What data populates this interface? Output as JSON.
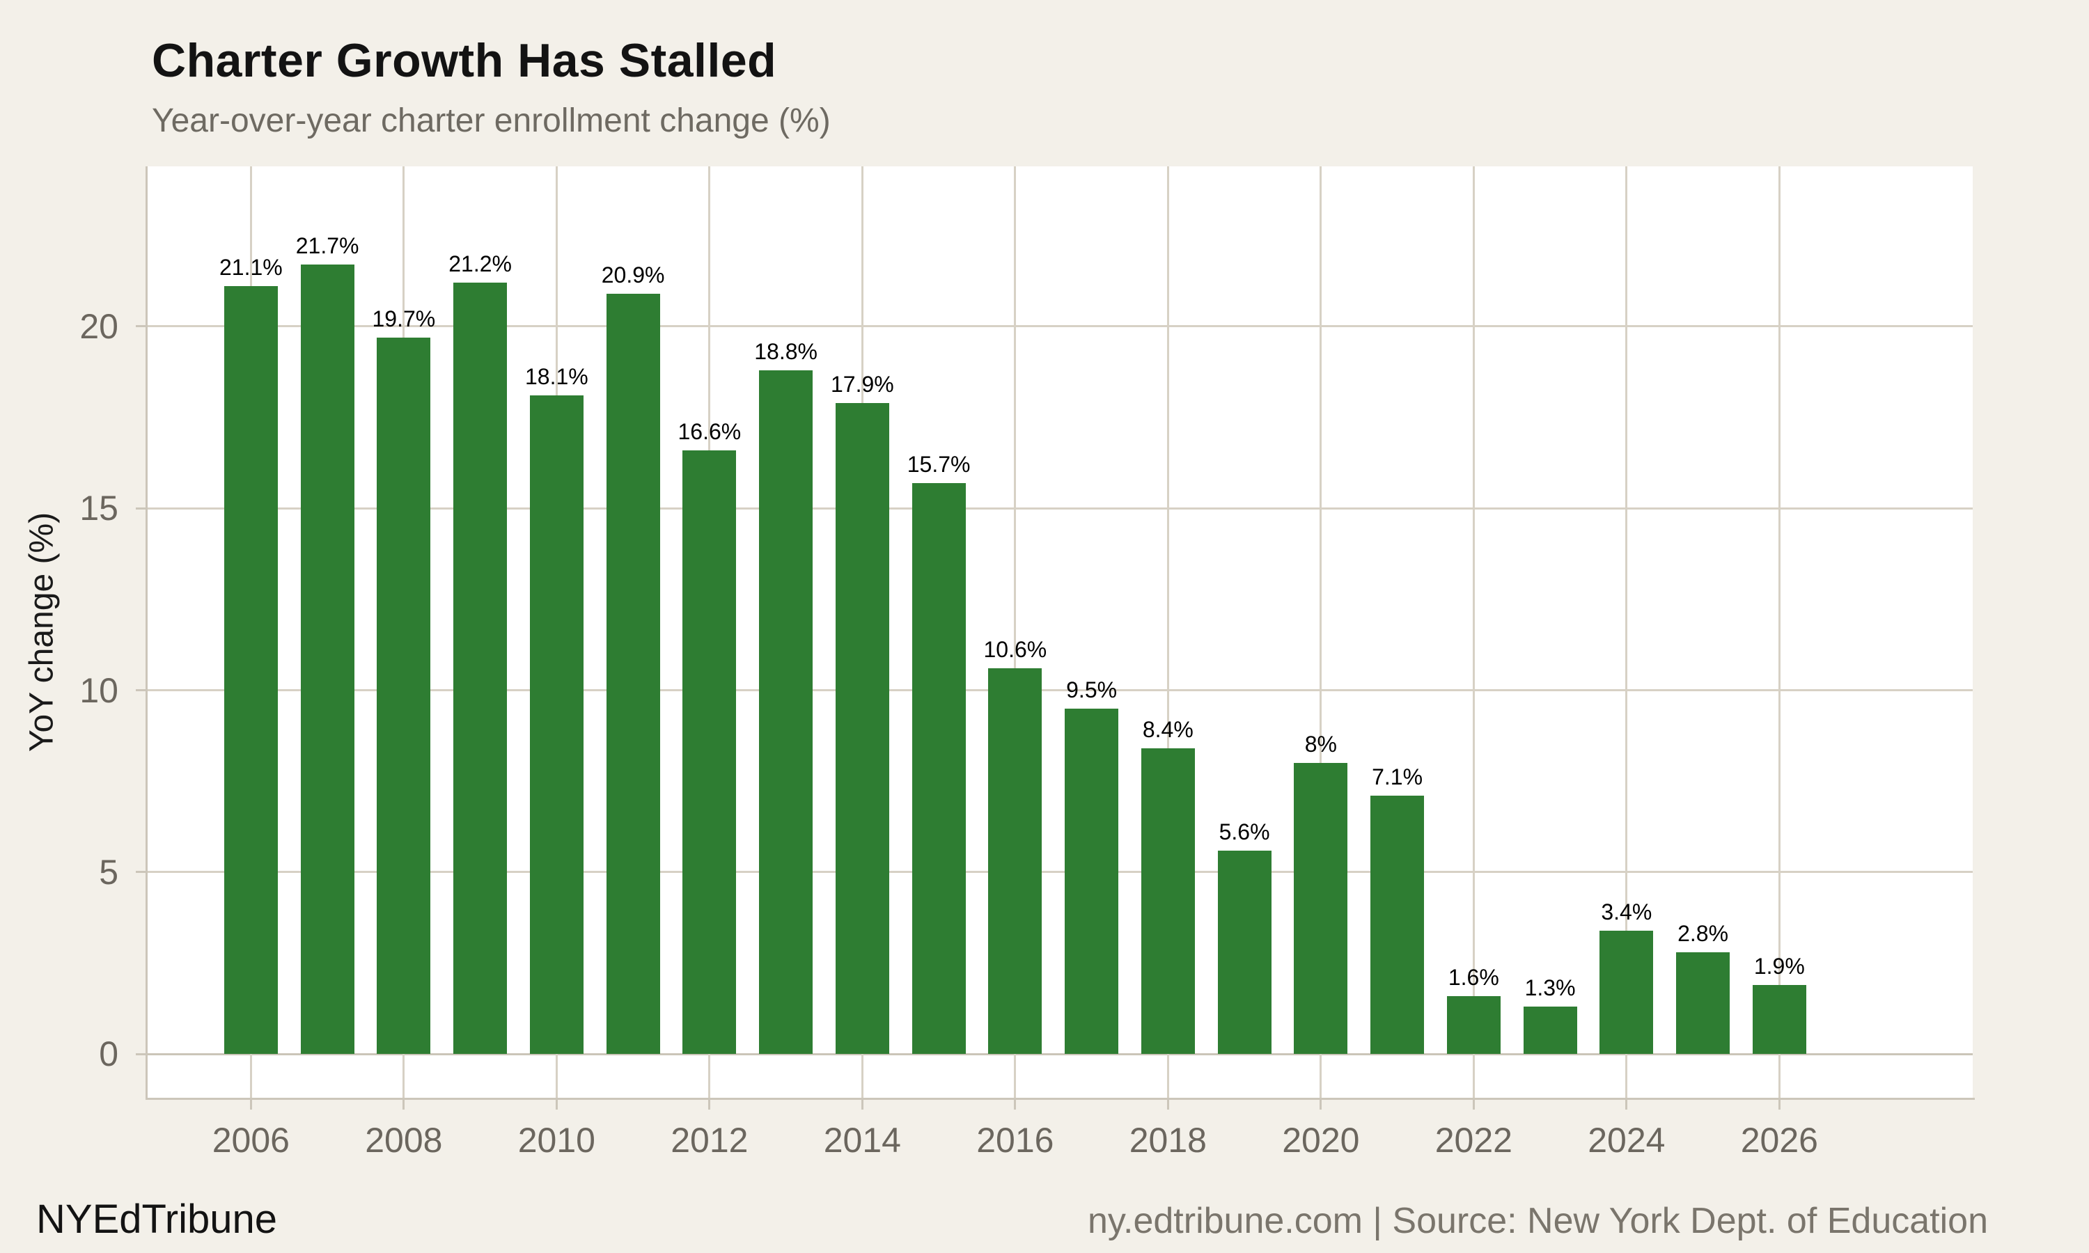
{
  "header": {
    "title": "Charter Growth Has Stalled",
    "subtitle": "Year-over-year charter enrollment change (%)"
  },
  "footer": {
    "brand": "NYEdTribune",
    "source": "ny.edtribune.com | Source: New York Dept. of Education"
  },
  "colors": {
    "page_background": "#f3f0e9",
    "plot_background": "#ffffff",
    "bar": "#2e7d32",
    "gridline": "#d7d1c5",
    "axis_line": "#ccc6ba",
    "tick_label": "#6b665e",
    "title": "#131313",
    "subtitle": "#6e6a62",
    "value_label": "#000000",
    "source_text": "#7a756c"
  },
  "chart_data": {
    "type": "bar",
    "title": "Charter Growth Has Stalled",
    "subtitle": "Year-over-year charter enrollment change (%)",
    "xlabel": "",
    "ylabel": "YoY change (%)",
    "x": [
      2006,
      2007,
      2008,
      2009,
      2010,
      2011,
      2012,
      2013,
      2014,
      2015,
      2016,
      2017,
      2018,
      2019,
      2020,
      2021,
      2022,
      2023,
      2024,
      2025,
      2026
    ],
    "values": [
      21.1,
      21.7,
      19.7,
      21.2,
      18.1,
      20.9,
      16.6,
      18.8,
      17.9,
      15.7,
      10.6,
      9.5,
      8.4,
      5.6,
      8,
      7.1,
      1.6,
      1.3,
      3.4,
      2.8,
      1.9
    ],
    "value_labels": [
      "21.1%",
      "21.7%",
      "19.7%",
      "21.2%",
      "18.1%",
      "20.9%",
      "16.6%",
      "18.8%",
      "17.9%",
      "15.7%",
      "10.6%",
      "9.5%",
      "8.4%",
      "5.6%",
      "8%",
      "7.1%",
      "1.6%",
      "1.3%",
      "3.4%",
      "2.8%",
      "1.9%"
    ],
    "x_ticks": [
      2006,
      2008,
      2010,
      2012,
      2014,
      2016,
      2018,
      2020,
      2022,
      2024,
      2026
    ],
    "y_ticks": [
      0,
      5,
      10,
      15,
      20
    ],
    "xlim": [
      2004.63,
      2028.53
    ],
    "ylim": [
      -1.2,
      24.4
    ],
    "grid": "both",
    "legend": "none",
    "bar_width_years": 0.7
  }
}
